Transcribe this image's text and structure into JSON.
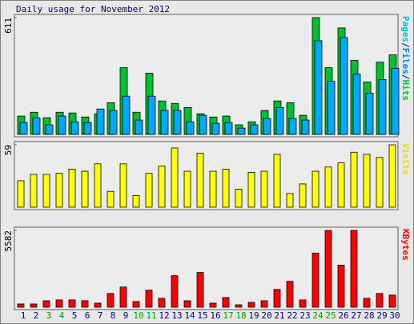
{
  "title": "Daily usage for November 2012",
  "chart_data": [
    {
      "type": "bar",
      "ylim": [
        0,
        611
      ],
      "yticks": [
        611
      ],
      "label": [
        {
          "text": "Pages",
          "color": "#00c0c0"
        },
        {
          "text": "/",
          "color": "#000080"
        },
        {
          "text": "Files",
          "color": "#0080ff"
        },
        {
          "text": "/",
          "color": "#000080"
        },
        {
          "text": "Hits",
          "color": "#00c030"
        }
      ],
      "series": [
        {
          "name": "Hits",
          "color": "#00c030",
          "values": [
            96,
            116,
            87,
            116,
            112,
            91,
            108,
            166,
            349,
            116,
            320,
            175,
            162,
            141,
            108,
            91,
            96,
            50,
            66,
            125,
            175,
            166,
            100,
            611,
            349,
            557,
            387,
            274,
            378,
            416
          ]
        },
        {
          "name": "Files",
          "color": "#00a8ff",
          "values": [
            62,
            87,
            50,
            96,
            66,
            62,
            133,
            125,
            200,
            75,
            200,
            125,
            125,
            66,
            100,
            58,
            62,
            33,
            50,
            83,
            141,
            83,
            75,
            490,
            278,
            507,
            316,
            216,
            287,
            345
          ]
        }
      ]
    },
    {
      "type": "bar",
      "ylim": [
        0,
        59
      ],
      "yticks": [
        59
      ],
      "label": [
        {
          "text": "Visits",
          "color": "#e0e000"
        }
      ],
      "series": [
        {
          "name": "Visits",
          "color": "#ffff00",
          "values": [
            25,
            31,
            31,
            32,
            36,
            34,
            41,
            15,
            41,
            11,
            32,
            39,
            56,
            34,
            51,
            34,
            36,
            17,
            33,
            34,
            50,
            13,
            22,
            34,
            38,
            42,
            52,
            50,
            47,
            59
          ]
        }
      ]
    },
    {
      "type": "bar",
      "ylim": [
        0,
        5582
      ],
      "yticks": [
        5582
      ],
      "label": [
        {
          "text": "KBytes",
          "color": "#ff0000"
        }
      ],
      "categories": [
        "1",
        "2",
        "3",
        "4",
        "5",
        "6",
        "7",
        "8",
        "9",
        "10",
        "11",
        "12",
        "13",
        "14",
        "15",
        "16",
        "17",
        "18",
        "19",
        "20",
        "21",
        "22",
        "23",
        "24",
        "25",
        "26",
        "27",
        "28",
        "29",
        "30"
      ],
      "category_colors": [
        "#000080",
        "#000080",
        "#00a000",
        "#00a000",
        "#000080",
        "#000080",
        "#000080",
        "#000080",
        "#000080",
        "#00a000",
        "#00a000",
        "#000080",
        "#000080",
        "#000080",
        "#000080",
        "#000080",
        "#00a000",
        "#00a000",
        "#000080",
        "#000080",
        "#000080",
        "#000080",
        "#000080",
        "#00a000",
        "#00a000",
        "#000080",
        "#000080",
        "#000080",
        "#000080",
        "#000080"
      ],
      "series": [
        {
          "name": "KBytes",
          "color": "#ff0000",
          "values": [
            235,
            235,
            470,
            530,
            530,
            470,
            294,
            999,
            1469,
            411,
            1234,
            646,
            2291,
            470,
            2527,
            294,
            705,
            176,
            352,
            470,
            1293,
            1880,
            530,
            3937,
            5582,
            3055,
            5582,
            646,
            999,
            881
          ]
        }
      ]
    }
  ]
}
